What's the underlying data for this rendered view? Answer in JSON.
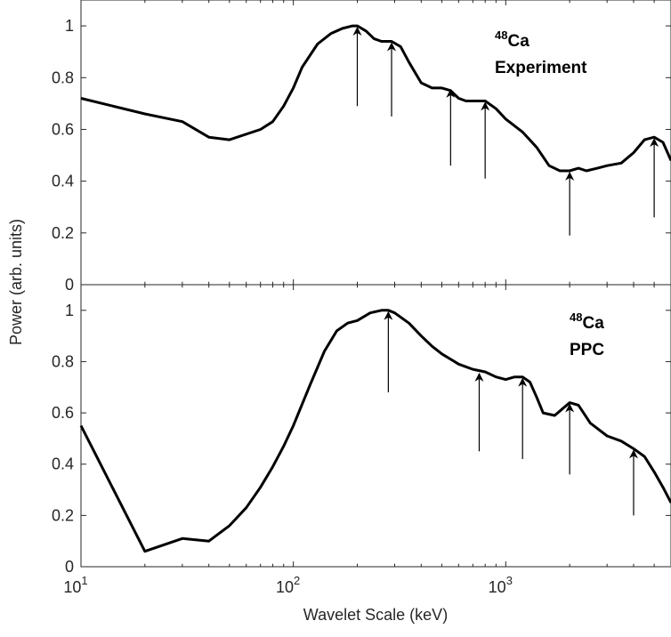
{
  "chart_data": [
    {
      "type": "line",
      "panel_label_isotope_mass": "48",
      "panel_label_element": "Ca",
      "panel_label_line2": "Experiment",
      "x_scale": "log",
      "xlim": [
        10,
        6000
      ],
      "ylim": [
        0,
        1.1
      ],
      "yticks": [
        "0",
        "0.2",
        "0.4",
        "0.6",
        "0.8",
        "1"
      ],
      "grid": false,
      "series": [
        {
          "x": [
            10,
            20,
            30,
            40,
            50,
            70,
            80,
            90,
            100,
            110,
            130,
            150,
            170,
            190,
            200,
            220,
            240,
            260,
            290,
            320,
            350,
            400,
            450,
            500,
            550,
            600,
            650,
            700,
            800,
            900,
            1000,
            1200,
            1400,
            1600,
            1800,
            2000,
            2200,
            2400,
            2700,
            3000,
            3500,
            4000,
            4500,
            5000,
            5500,
            6000
          ],
          "y": [
            0.72,
            0.66,
            0.63,
            0.57,
            0.56,
            0.6,
            0.63,
            0.69,
            0.76,
            0.84,
            0.93,
            0.97,
            0.99,
            1.0,
            1.0,
            0.98,
            0.95,
            0.94,
            0.94,
            0.92,
            0.86,
            0.78,
            0.76,
            0.76,
            0.75,
            0.72,
            0.71,
            0.71,
            0.71,
            0.68,
            0.64,
            0.59,
            0.53,
            0.46,
            0.44,
            0.44,
            0.45,
            0.44,
            0.45,
            0.46,
            0.47,
            0.51,
            0.56,
            0.57,
            0.55,
            0.48
          ]
        }
      ],
      "annotations": [
        {
          "type": "arrow",
          "x": 200,
          "y_tail": 0.69,
          "y_head": 0.99
        },
        {
          "type": "arrow",
          "x": 290,
          "y_tail": 0.65,
          "y_head": 0.93
        },
        {
          "type": "arrow",
          "x": 550,
          "y_tail": 0.46,
          "y_head": 0.75
        },
        {
          "type": "arrow",
          "x": 800,
          "y_tail": 0.41,
          "y_head": 0.7
        },
        {
          "type": "arrow",
          "x": 2000,
          "y_tail": 0.19,
          "y_head": 0.43
        },
        {
          "type": "arrow",
          "x": 5000,
          "y_tail": 0.26,
          "y_head": 0.56
        }
      ]
    },
    {
      "type": "line",
      "panel_label_isotope_mass": "48",
      "panel_label_element": "Ca",
      "panel_label_line2": "PPC",
      "x_scale": "log",
      "xlim": [
        10,
        6000
      ],
      "ylim": [
        0,
        1.1
      ],
      "yticks": [
        "0",
        "0.2",
        "0.4",
        "0.6",
        "0.8",
        "1"
      ],
      "xticks": [
        10,
        100,
        1000
      ],
      "xtick_base": "10",
      "xtick_exponents": [
        "1",
        "2",
        "3"
      ],
      "xlabel": "Wavelet Scale (keV)",
      "grid": false,
      "series": [
        {
          "x": [
            10,
            20,
            30,
            40,
            50,
            60,
            70,
            80,
            90,
            100,
            120,
            140,
            160,
            180,
            200,
            230,
            260,
            280,
            300,
            350,
            400,
            450,
            500,
            600,
            700,
            800,
            900,
            1000,
            1100,
            1200,
            1300,
            1400,
            1500,
            1700,
            2000,
            2200,
            2500,
            3000,
            3500,
            4000,
            4500,
            5000,
            5500,
            6000
          ],
          "y": [
            0.55,
            0.06,
            0.11,
            0.1,
            0.16,
            0.23,
            0.31,
            0.39,
            0.47,
            0.55,
            0.71,
            0.84,
            0.92,
            0.95,
            0.96,
            0.99,
            1.0,
            1.0,
            0.99,
            0.95,
            0.9,
            0.86,
            0.83,
            0.79,
            0.77,
            0.76,
            0.74,
            0.73,
            0.74,
            0.74,
            0.72,
            0.66,
            0.6,
            0.59,
            0.64,
            0.63,
            0.56,
            0.51,
            0.49,
            0.46,
            0.43,
            0.37,
            0.31,
            0.25
          ]
        }
      ],
      "annotations": [
        {
          "type": "arrow",
          "x": 280,
          "y_tail": 0.68,
          "y_head": 0.99
        },
        {
          "type": "arrow",
          "x": 750,
          "y_tail": 0.45,
          "y_head": 0.75
        },
        {
          "type": "arrow",
          "x": 1200,
          "y_tail": 0.42,
          "y_head": 0.73
        },
        {
          "type": "arrow",
          "x": 2000,
          "y_tail": 0.36,
          "y_head": 0.63
        },
        {
          "type": "arrow",
          "x": 4000,
          "y_tail": 0.2,
          "y_head": 0.45
        }
      ]
    }
  ],
  "ylabel": "Power (arb. units)",
  "colors": {
    "line": "#000000",
    "axes": "#262626",
    "background": "#ffffff"
  }
}
